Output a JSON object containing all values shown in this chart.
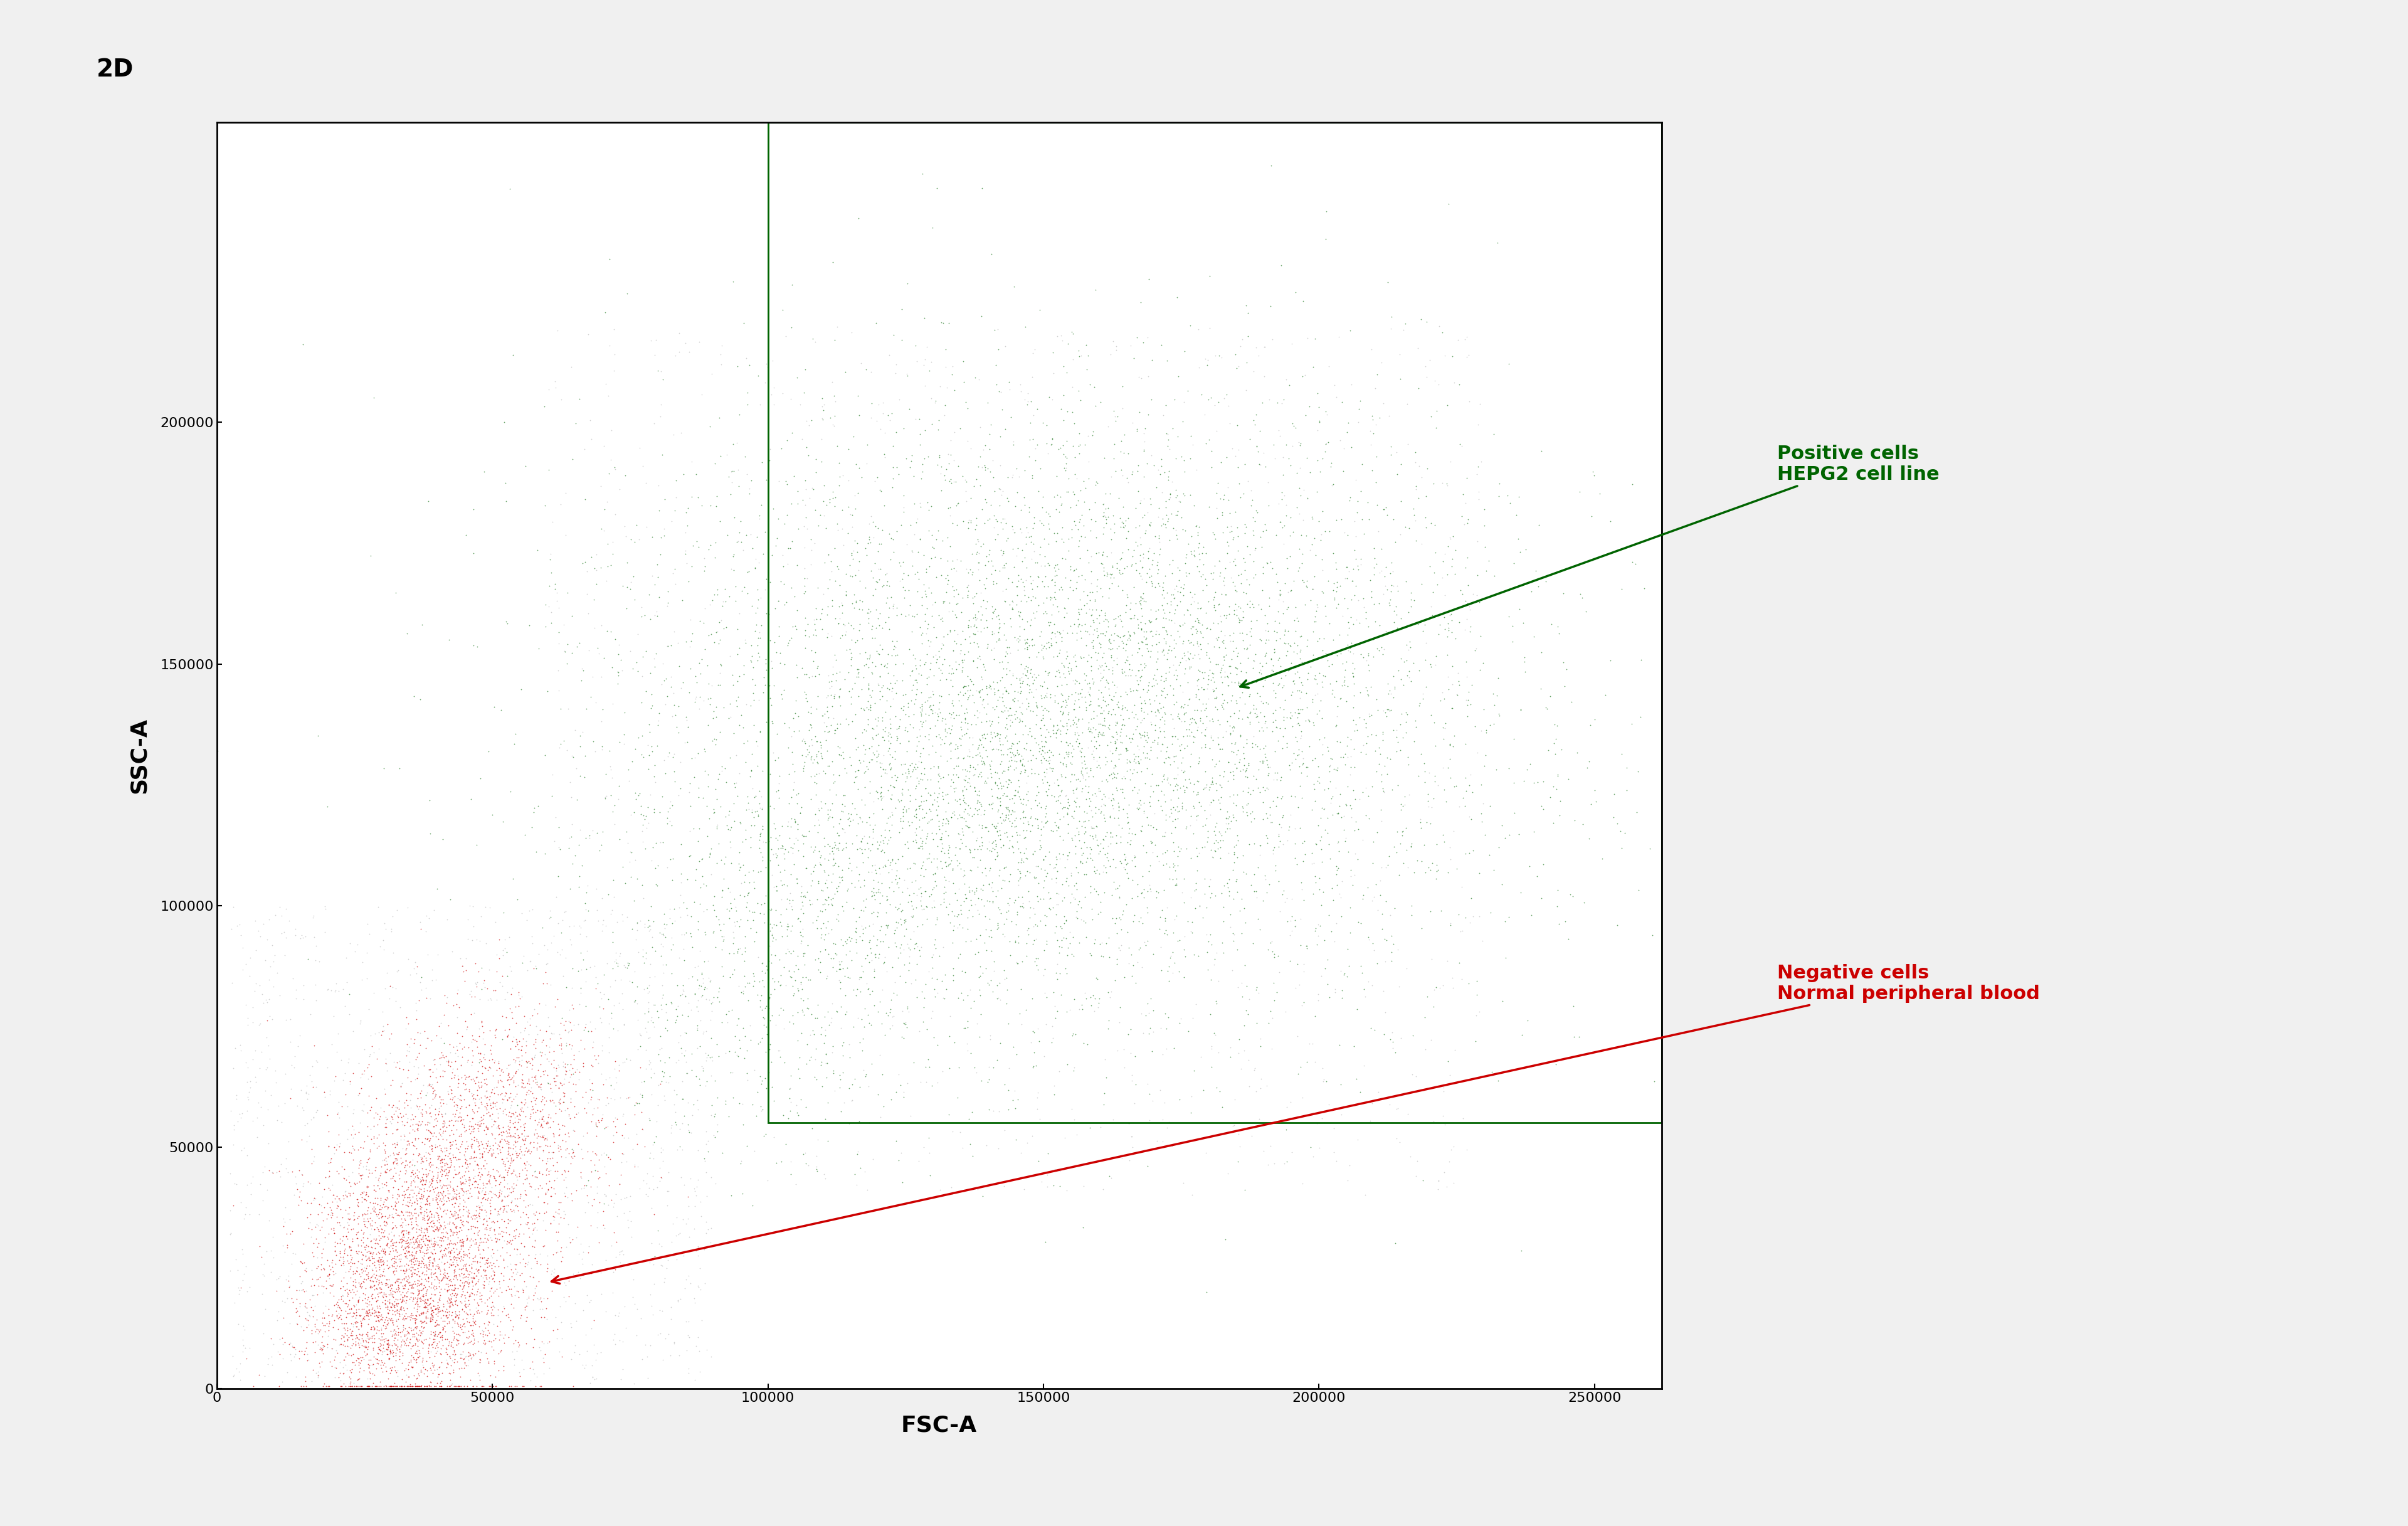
{
  "title": "2D",
  "xlabel": "FSC-A",
  "ylabel": "SSC-A",
  "xlim": [
    0,
    262144
  ],
  "ylim": [
    0,
    262144
  ],
  "xticks": [
    0,
    50000,
    100000,
    150000,
    200000,
    250000
  ],
  "yticks": [
    0,
    50000,
    100000,
    150000,
    200000
  ],
  "ytick_labels": [
    "0",
    "50000",
    "100000",
    "150000",
    "200000"
  ],
  "xtick_labels": [
    "0",
    "50000",
    "100000",
    "150000",
    "200000",
    "250000"
  ],
  "green_n": 8000,
  "red_n": 5000,
  "gray_n": 3000,
  "positive_label": "Positive cells\nHEPG2 cell line",
  "negative_label": "Negative cells\nNormal peripheral blood",
  "positive_color": "#006400",
  "negative_color": "#cc0000",
  "dot_size": 1.5,
  "background_color": "#ffffff",
  "gate_x0": 100000,
  "gate_x1": 262144,
  "gate_y0": 55000,
  "gate_y1": 262144,
  "title_icon_text": "2D",
  "fig_bg_color": "#f0f0f0"
}
